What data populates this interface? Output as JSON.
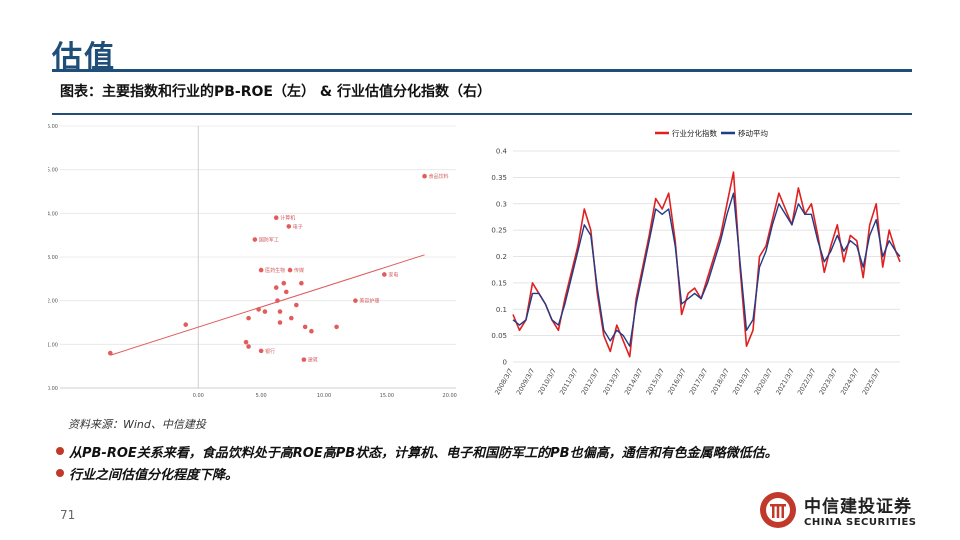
{
  "header": {
    "title": "估值"
  },
  "caption": "图表：主要指数和行业的PB-ROE（左） & 行业估值分化指数（右）",
  "chart_data": [
    {
      "type": "scatter",
      "x_ticks": [
        "0.00",
        "5.00",
        "10.00",
        "15.00",
        "20.00"
      ],
      "x_tick_vals": [
        0,
        5,
        10,
        15,
        20
      ],
      "y_ticks": [
        "0.00",
        "1.00",
        "2.00",
        "3.00",
        "4.00",
        "5.00",
        "6.00"
      ],
      "y_tick_vals": [
        0,
        1,
        2,
        3,
        4,
        5,
        6
      ],
      "x_range": [
        -11,
        20.5
      ],
      "y_range": [
        0,
        6
      ],
      "grid": true,
      "points": [
        {
          "x": 18.0,
          "y": 4.85,
          "label": "食品饮料"
        },
        {
          "x": 6.2,
          "y": 3.9,
          "label": "计算机"
        },
        {
          "x": 7.2,
          "y": 3.7,
          "label": "电子"
        },
        {
          "x": 4.5,
          "y": 3.4,
          "label": "国防军工"
        },
        {
          "x": 5.0,
          "y": 2.7,
          "label": "医药生物"
        },
        {
          "x": 7.3,
          "y": 2.7,
          "label": "传媒"
        },
        {
          "x": 14.8,
          "y": 2.6,
          "label": "家电"
        },
        {
          "x": 6.8,
          "y": 2.4,
          "label": ""
        },
        {
          "x": 8.2,
          "y": 2.4,
          "label": ""
        },
        {
          "x": 6.2,
          "y": 2.3,
          "label": ""
        },
        {
          "x": 7.0,
          "y": 2.2,
          "label": ""
        },
        {
          "x": 12.5,
          "y": 2.0,
          "label": "美容护理"
        },
        {
          "x": 6.3,
          "y": 2.0,
          "label": ""
        },
        {
          "x": 7.8,
          "y": 1.9,
          "label": ""
        },
        {
          "x": 4.8,
          "y": 1.8,
          "label": ""
        },
        {
          "x": 5.3,
          "y": 1.75,
          "label": ""
        },
        {
          "x": 6.5,
          "y": 1.75,
          "label": ""
        },
        {
          "x": 4.0,
          "y": 1.6,
          "label": ""
        },
        {
          "x": 7.4,
          "y": 1.6,
          "label": ""
        },
        {
          "x": 6.5,
          "y": 1.5,
          "label": ""
        },
        {
          "x": 8.5,
          "y": 1.4,
          "label": ""
        },
        {
          "x": 11.0,
          "y": 1.4,
          "label": ""
        },
        {
          "x": -1.0,
          "y": 1.45,
          "label": ""
        },
        {
          "x": 9.0,
          "y": 1.3,
          "label": ""
        },
        {
          "x": 3.8,
          "y": 1.05,
          "label": ""
        },
        {
          "x": 4.0,
          "y": 0.95,
          "label": ""
        },
        {
          "x": 5.0,
          "y": 0.85,
          "label": "银行"
        },
        {
          "x": 8.4,
          "y": 0.65,
          "label": "建筑"
        },
        {
          "x": -7.0,
          "y": 0.8,
          "label": ""
        }
      ],
      "trendline": [
        {
          "x": -7.0,
          "y": 0.75
        },
        {
          "x": 18.0,
          "y": 3.05
        }
      ]
    },
    {
      "type": "line",
      "legend": [
        "行业分化指数",
        "移动平均"
      ],
      "legend_position": "top",
      "y_ticks": [
        "0",
        "0.05",
        "0.1",
        "0.15",
        "0.2",
        "0.25",
        "0.3",
        "0.35",
        "0.4"
      ],
      "y_tick_vals": [
        0,
        0.05,
        0.1,
        0.15,
        0.2,
        0.25,
        0.3,
        0.35,
        0.4
      ],
      "y_range": [
        0,
        0.4
      ],
      "x_tick_labels": [
        "2008/3/7",
        "2009/3/7",
        "2010/3/7",
        "2011/3/7",
        "2012/3/7",
        "2013/3/7",
        "2014/3/7",
        "2015/3/7",
        "2016/3/7",
        "2017/3/7",
        "2018/3/7",
        "2019/3/7",
        "2020/3/7",
        "2021/3/7",
        "2022/3/7",
        "2023/3/7",
        "2024/3/7",
        "2025/3/7"
      ],
      "x_range": [
        2008.0,
        2025.9
      ],
      "grid": true,
      "series": [
        {
          "name": "行业分化指数",
          "color": "#e02020",
          "x": [
            2008.0,
            2008.3,
            2008.6,
            2008.9,
            2009.2,
            2009.5,
            2009.8,
            2010.1,
            2010.4,
            2010.7,
            2011.0,
            2011.3,
            2011.6,
            2011.9,
            2012.2,
            2012.5,
            2012.8,
            2013.1,
            2013.4,
            2013.7,
            2014.0,
            2014.3,
            2014.6,
            2014.9,
            2015.2,
            2015.5,
            2015.8,
            2016.1,
            2016.4,
            2016.7,
            2017.0,
            2017.3,
            2017.6,
            2017.9,
            2018.2,
            2018.5,
            2018.8,
            2019.1,
            2019.4,
            2019.7,
            2020.0,
            2020.3,
            2020.6,
            2020.9,
            2021.2,
            2021.5,
            2021.8,
            2022.1,
            2022.4,
            2022.7,
            2023.0,
            2023.3,
            2023.6,
            2023.9,
            2024.2,
            2024.5,
            2024.8,
            2025.1,
            2025.4,
            2025.7,
            2025.9
          ],
          "y": [
            0.09,
            0.06,
            0.08,
            0.15,
            0.13,
            0.11,
            0.08,
            0.06,
            0.12,
            0.17,
            0.22,
            0.29,
            0.25,
            0.13,
            0.05,
            0.02,
            0.07,
            0.04,
            0.01,
            0.12,
            0.18,
            0.24,
            0.31,
            0.29,
            0.32,
            0.23,
            0.09,
            0.13,
            0.14,
            0.12,
            0.16,
            0.2,
            0.24,
            0.3,
            0.36,
            0.18,
            0.03,
            0.06,
            0.2,
            0.22,
            0.27,
            0.32,
            0.29,
            0.26,
            0.33,
            0.28,
            0.3,
            0.24,
            0.17,
            0.22,
            0.26,
            0.19,
            0.24,
            0.23,
            0.16,
            0.26,
            0.3,
            0.18,
            0.25,
            0.21,
            0.19
          ]
        },
        {
          "name": "移动平均",
          "color": "#1f3c88",
          "x": [
            2008.0,
            2008.3,
            2008.6,
            2008.9,
            2009.2,
            2009.5,
            2009.8,
            2010.1,
            2010.4,
            2010.7,
            2011.0,
            2011.3,
            2011.6,
            2011.9,
            2012.2,
            2012.5,
            2012.8,
            2013.1,
            2013.4,
            2013.7,
            2014.0,
            2014.3,
            2014.6,
            2014.9,
            2015.2,
            2015.5,
            2015.8,
            2016.1,
            2016.4,
            2016.7,
            2017.0,
            2017.3,
            2017.6,
            2017.9,
            2018.2,
            2018.5,
            2018.8,
            2019.1,
            2019.4,
            2019.7,
            2020.0,
            2020.3,
            2020.6,
            2020.9,
            2021.2,
            2021.5,
            2021.8,
            2022.1,
            2022.4,
            2022.7,
            2023.0,
            2023.3,
            2023.6,
            2023.9,
            2024.2,
            2024.5,
            2024.8,
            2025.1,
            2025.4,
            2025.7,
            2025.9
          ],
          "y": [
            0.08,
            0.07,
            0.08,
            0.13,
            0.13,
            0.11,
            0.08,
            0.07,
            0.11,
            0.16,
            0.21,
            0.26,
            0.24,
            0.14,
            0.06,
            0.04,
            0.06,
            0.05,
            0.03,
            0.11,
            0.17,
            0.23,
            0.29,
            0.28,
            0.29,
            0.22,
            0.11,
            0.12,
            0.13,
            0.12,
            0.15,
            0.19,
            0.23,
            0.28,
            0.32,
            0.19,
            0.06,
            0.08,
            0.18,
            0.21,
            0.26,
            0.3,
            0.28,
            0.26,
            0.3,
            0.28,
            0.28,
            0.23,
            0.19,
            0.21,
            0.24,
            0.21,
            0.23,
            0.22,
            0.18,
            0.24,
            0.27,
            0.2,
            0.23,
            0.21,
            0.2
          ]
        }
      ]
    }
  ],
  "source": "资料来源：Wind、中信建投",
  "bullets": [
    "从PB-ROE关系来看，食品饮料处于高ROE高PB状态，计算机、电子和国防军工的PB也偏高，通信和有色金属略微低估。",
    "行业之间估值分化程度下降。"
  ],
  "page_number": "71",
  "logo": {
    "cn": "中信建投证券",
    "en": "CHINA SECURITIES",
    "color": "#c0392b"
  }
}
